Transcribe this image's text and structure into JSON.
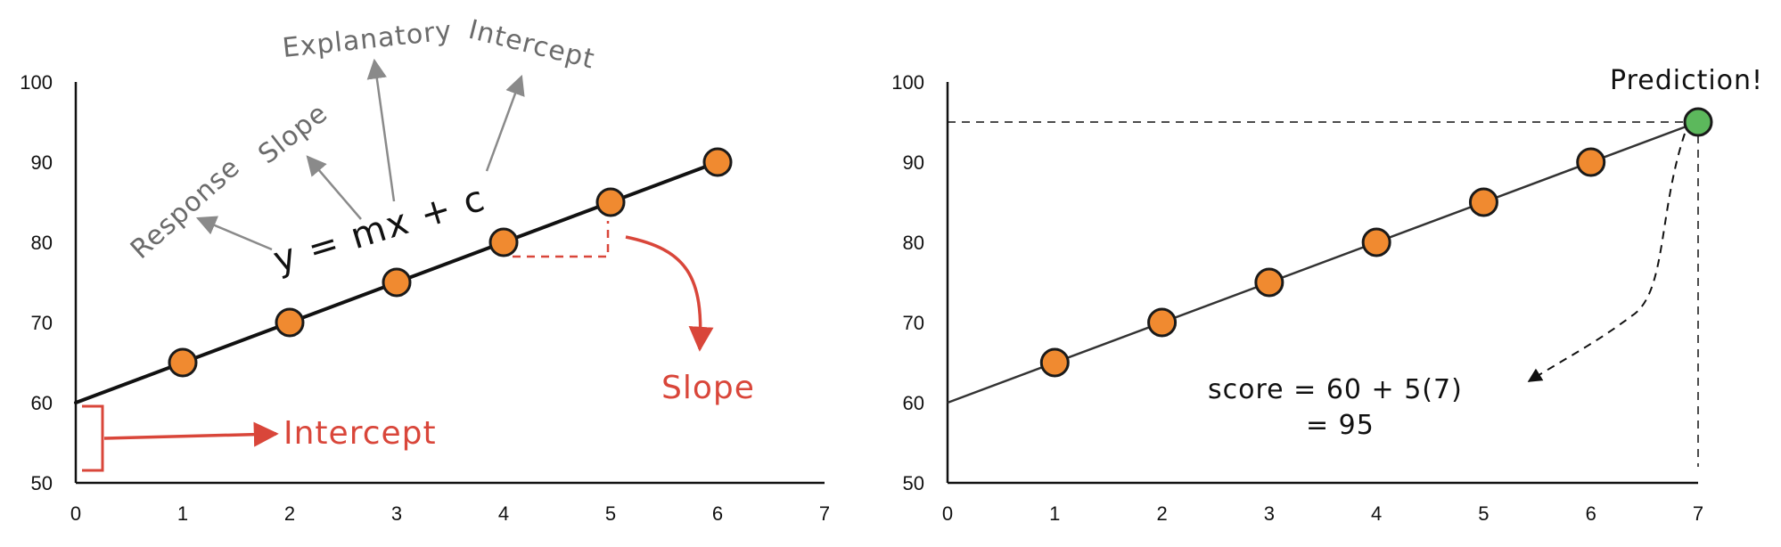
{
  "colors": {
    "point_fill": "#f08a30",
    "point_stroke": "#1a1a1a",
    "prediction_fill": "#5cb85c",
    "annotation_red": "#d9463a",
    "annotation_gray": "#6b6b6b"
  },
  "chart_data": [
    {
      "type": "scatter",
      "title": "",
      "xlabel": "",
      "ylabel": "",
      "xlim": [
        0,
        7
      ],
      "ylim": [
        50,
        100
      ],
      "x_ticks": [
        "0",
        "1",
        "2",
        "3",
        "4",
        "5",
        "6",
        "7"
      ],
      "y_ticks": [
        "50",
        "60",
        "70",
        "80",
        "90",
        "100"
      ],
      "grid": false,
      "series": [
        {
          "x": [
            1,
            2,
            3,
            4,
            5,
            6
          ],
          "y": [
            65,
            70,
            75,
            80,
            85,
            90
          ]
        }
      ],
      "fit_line": {
        "intercept": 60,
        "slope": 5,
        "x_range": [
          0,
          6
        ]
      },
      "annotations": {
        "equation": "y = mx + c",
        "response": "Response",
        "slope_term": "Slope",
        "explanatory": "Explanatory",
        "intercept_term": "Intercept",
        "slope_label": "Slope",
        "intercept_label": "Intercept"
      }
    },
    {
      "type": "scatter",
      "title": "",
      "xlabel": "",
      "ylabel": "",
      "xlim": [
        0,
        7
      ],
      "ylim": [
        50,
        100
      ],
      "x_ticks": [
        "0",
        "1",
        "2",
        "3",
        "4",
        "5",
        "6",
        "7"
      ],
      "y_ticks": [
        "50",
        "60",
        "70",
        "80",
        "90",
        "100"
      ],
      "grid": false,
      "series": [
        {
          "x": [
            1,
            2,
            3,
            4,
            5,
            6
          ],
          "y": [
            65,
            70,
            75,
            80,
            85,
            90
          ]
        }
      ],
      "fit_line": {
        "intercept": 60,
        "slope": 5,
        "x_range": [
          0,
          7
        ]
      },
      "prediction": {
        "x": 7,
        "y": 95
      },
      "annotations": {
        "prediction_label": "Prediction!",
        "formula_line1": "score = 60 + 5(7)",
        "formula_line2": "= 95"
      }
    }
  ]
}
